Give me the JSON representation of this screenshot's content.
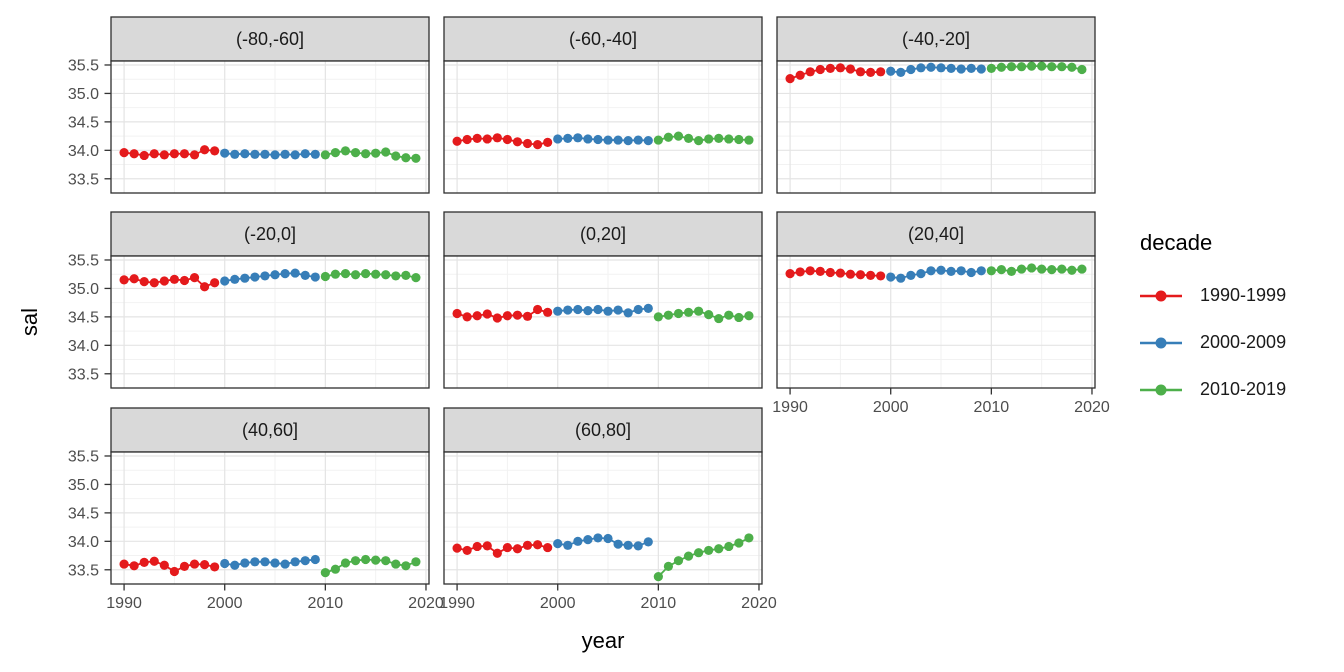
{
  "figure": {
    "background": "#FFFFFF"
  },
  "legend": {
    "title": "decade",
    "entries": [
      {
        "label": "1990-1999",
        "color": "#E41A1C"
      },
      {
        "label": "2000-2009",
        "color": "#377EB8"
      },
      {
        "label": "2010-2019",
        "color": "#4DAF4A"
      }
    ]
  },
  "chart_data": {
    "type": "line",
    "marker": "point",
    "title": "",
    "xlabel": "year",
    "ylabel": "sal",
    "facet_layout": {
      "ncol": 3,
      "nrow": 3,
      "n_facets": 8
    },
    "legend_position": "right",
    "grid": true,
    "x_range": [
      1988.7,
      2020.3
    ],
    "y_range": [
      33.25,
      35.57
    ],
    "x_ticks": [
      {
        "value": 1990,
        "label": "1990"
      },
      {
        "value": 2000,
        "label": "2000"
      },
      {
        "value": 2010,
        "label": "2010"
      },
      {
        "value": 2020,
        "label": "2020"
      }
    ],
    "y_ticks": [
      {
        "value": 33.5,
        "label": "33.5"
      },
      {
        "value": 34.0,
        "label": "34.0"
      },
      {
        "value": 34.5,
        "label": "34.5"
      },
      {
        "value": 35.0,
        "label": "35.0"
      },
      {
        "value": 35.5,
        "label": "35.5"
      }
    ],
    "x_minor": [
      1995,
      2005,
      2015
    ],
    "y_minor": [
      33.75,
      34.25,
      34.75,
      35.25
    ],
    "style": {
      "strip_fill": "#D9D9D9",
      "strip_text_color": "#1A1A1A",
      "panel_fill": "#FFFFFF",
      "panel_border": "#2E2E2E",
      "grid_major": "#E4E4E4",
      "grid_minor": "#F2F2F2",
      "tick_color": "#333333",
      "tick_text_color": "#4D4D4D"
    },
    "decades": [
      {
        "name": "1990-1999",
        "color": "#E41A1C",
        "years": [
          1990,
          1991,
          1992,
          1993,
          1994,
          1995,
          1996,
          1997,
          1998,
          1999
        ]
      },
      {
        "name": "2000-2009",
        "color": "#377EB8",
        "years": [
          2000,
          2001,
          2002,
          2003,
          2004,
          2005,
          2006,
          2007,
          2008,
          2009
        ]
      },
      {
        "name": "2010-2019",
        "color": "#4DAF4A",
        "years": [
          2010,
          2011,
          2012,
          2013,
          2014,
          2015,
          2016,
          2017,
          2018,
          2019
        ]
      }
    ],
    "facets": [
      {
        "label": "(-80,-60]",
        "values": {
          "1990-1999": [
            33.96,
            33.94,
            33.91,
            33.94,
            33.92,
            33.94,
            33.94,
            33.92,
            34.01,
            33.99
          ],
          "2000-2009": [
            33.95,
            33.93,
            33.94,
            33.93,
            33.93,
            33.92,
            33.93,
            33.92,
            33.94,
            33.93
          ],
          "2010-2019": [
            33.92,
            33.96,
            33.99,
            33.96,
            33.94,
            33.95,
            33.97,
            33.9,
            33.87,
            33.86
          ]
        }
      },
      {
        "label": "(-60,-40]",
        "values": {
          "1990-1999": [
            34.16,
            34.19,
            34.21,
            34.2,
            34.22,
            34.19,
            34.15,
            34.12,
            34.1,
            34.14
          ],
          "2000-2009": [
            34.2,
            34.21,
            34.22,
            34.2,
            34.19,
            34.18,
            34.18,
            34.17,
            34.18,
            34.17
          ],
          "2010-2019": [
            34.18,
            34.23,
            34.25,
            34.21,
            34.17,
            34.2,
            34.21,
            34.2,
            34.19,
            34.18
          ]
        }
      },
      {
        "label": "(-40,-20]",
        "values": {
          "1990-1999": [
            35.26,
            35.32,
            35.38,
            35.42,
            35.44,
            35.45,
            35.43,
            35.38,
            35.37,
            35.38
          ],
          "2000-2009": [
            35.39,
            35.37,
            35.42,
            35.45,
            35.46,
            35.45,
            35.44,
            35.43,
            35.44,
            35.43
          ],
          "2010-2019": [
            35.44,
            35.46,
            35.47,
            35.47,
            35.48,
            35.48,
            35.47,
            35.47,
            35.46,
            35.42
          ]
        }
      },
      {
        "label": "(-20,0]",
        "values": {
          "1990-1999": [
            35.15,
            35.17,
            35.12,
            35.1,
            35.13,
            35.16,
            35.14,
            35.19,
            35.03,
            35.1
          ],
          "2000-2009": [
            35.13,
            35.16,
            35.18,
            35.2,
            35.22,
            35.24,
            35.26,
            35.27,
            35.23,
            35.2
          ],
          "2010-2019": [
            35.21,
            35.25,
            35.26,
            35.24,
            35.26,
            35.25,
            35.24,
            35.22,
            35.23,
            35.19
          ]
        }
      },
      {
        "label": "(0,20]",
        "values": {
          "1990-1999": [
            34.56,
            34.5,
            34.52,
            34.55,
            34.48,
            34.52,
            34.53,
            34.51,
            34.63,
            34.58
          ],
          "2000-2009": [
            34.6,
            34.62,
            34.63,
            34.61,
            34.63,
            34.6,
            34.62,
            34.57,
            34.63,
            34.65
          ],
          "2010-2019": [
            34.5,
            34.53,
            34.56,
            34.58,
            34.6,
            34.54,
            34.47,
            34.53,
            34.49,
            34.52
          ]
        }
      },
      {
        "label": "(20,40]",
        "values": {
          "1990-1999": [
            35.26,
            35.29,
            35.31,
            35.3,
            35.28,
            35.27,
            35.25,
            35.24,
            35.23,
            35.22
          ],
          "2000-2009": [
            35.2,
            35.18,
            35.23,
            35.26,
            35.31,
            35.32,
            35.3,
            35.31,
            35.28,
            35.31
          ],
          "2010-2019": [
            35.31,
            35.33,
            35.3,
            35.34,
            35.36,
            35.34,
            35.33,
            35.34,
            35.32,
            35.34
          ]
        }
      },
      {
        "label": "(40,60]",
        "values": {
          "1990-1999": [
            33.6,
            33.57,
            33.63,
            33.65,
            33.58,
            33.47,
            33.56,
            33.6,
            33.59,
            33.55
          ],
          "2000-2009": [
            33.61,
            33.58,
            33.62,
            33.64,
            33.64,
            33.62,
            33.6,
            33.64,
            33.66,
            33.68
          ],
          "2010-2019": [
            33.45,
            33.51,
            33.62,
            33.66,
            33.68,
            33.67,
            33.66,
            33.6,
            33.57,
            33.64
          ]
        }
      },
      {
        "label": "(60,80]",
        "values": {
          "1990-1999": [
            33.88,
            33.84,
            33.91,
            33.92,
            33.79,
            33.89,
            33.87,
            33.93,
            33.94,
            33.89
          ],
          "2000-2009": [
            33.96,
            33.93,
            34.0,
            34.03,
            34.06,
            34.05,
            33.95,
            33.93,
            33.92,
            33.99
          ],
          "2010-2019": [
            33.38,
            33.56,
            33.66,
            33.74,
            33.8,
            33.84,
            33.87,
            33.91,
            33.97,
            34.06
          ]
        }
      }
    ]
  }
}
